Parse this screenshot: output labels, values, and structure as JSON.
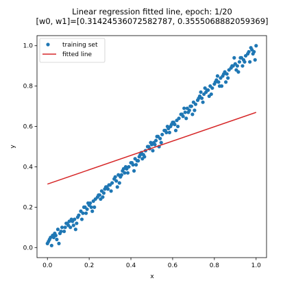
{
  "chart_data": {
    "type": "scatter",
    "title_line1": "Linear regression fitted line, epoch: 1/20",
    "title_line2": "[w0, w1]=[0.31424536072582787, 0.3555068882059369]",
    "xlabel": "x",
    "ylabel": "y",
    "xlim": [
      -0.05,
      1.05
    ],
    "ylim": [
      -0.05,
      1.05
    ],
    "xticks": [
      "0.0",
      "0.2",
      "0.4",
      "0.6",
      "0.8",
      "1.0"
    ],
    "yticks": [
      "0.0",
      "0.2",
      "0.4",
      "0.6",
      "0.8",
      "1.0"
    ],
    "grid": false,
    "legend_position": "upper-left",
    "series": [
      {
        "name": "training set",
        "kind": "scatter",
        "color": "#1f77b4",
        "x": [
          0.0,
          0.01,
          0.02,
          0.03,
          0.04,
          0.05,
          0.06,
          0.07,
          0.08,
          0.09,
          0.1,
          0.11,
          0.12,
          0.13,
          0.14,
          0.15,
          0.16,
          0.17,
          0.18,
          0.19,
          0.2,
          0.21,
          0.22,
          0.23,
          0.24,
          0.25,
          0.26,
          0.27,
          0.28,
          0.29,
          0.3,
          0.31,
          0.32,
          0.33,
          0.34,
          0.35,
          0.36,
          0.37,
          0.38,
          0.39,
          0.4,
          0.41,
          0.42,
          0.43,
          0.44,
          0.45,
          0.46,
          0.47,
          0.48,
          0.49,
          0.5,
          0.51,
          0.52,
          0.53,
          0.54,
          0.55,
          0.56,
          0.57,
          0.58,
          0.59,
          0.6,
          0.61,
          0.62,
          0.63,
          0.64,
          0.65,
          0.66,
          0.67,
          0.68,
          0.69,
          0.7,
          0.71,
          0.72,
          0.73,
          0.74,
          0.75,
          0.76,
          0.77,
          0.78,
          0.79,
          0.8,
          0.81,
          0.82,
          0.83,
          0.84,
          0.85,
          0.86,
          0.87,
          0.88,
          0.89,
          0.9,
          0.91,
          0.92,
          0.93,
          0.94,
          0.95,
          0.96,
          0.97,
          0.98,
          0.99,
          1.0,
          0.005,
          0.025,
          0.045,
          0.065,
          0.085,
          0.105,
          0.125,
          0.145,
          0.165,
          0.185,
          0.205,
          0.225,
          0.245,
          0.265,
          0.285,
          0.305,
          0.325,
          0.345,
          0.365,
          0.385,
          0.405,
          0.425,
          0.445,
          0.465,
          0.485,
          0.505,
          0.525,
          0.545,
          0.565,
          0.585,
          0.605,
          0.625,
          0.645,
          0.665,
          0.685,
          0.705,
          0.725,
          0.745,
          0.765,
          0.785,
          0.805,
          0.825,
          0.845,
          0.865,
          0.885,
          0.905,
          0.925,
          0.945,
          0.965,
          0.985,
          0.015,
          0.055,
          0.095,
          0.135,
          0.175,
          0.215,
          0.255,
          0.295,
          0.335,
          0.375,
          0.415,
          0.455,
          0.495,
          0.535,
          0.575,
          0.615,
          0.655,
          0.695,
          0.735,
          0.775,
          0.815,
          0.855,
          0.895,
          0.935,
          0.975,
          0.035,
          0.115,
          0.195,
          0.275,
          0.355,
          0.435,
          0.515,
          0.595,
          0.675,
          0.755,
          0.835,
          0.915,
          0.995
        ],
        "y": [
          0.02,
          0.04,
          0.01,
          0.05,
          0.06,
          0.09,
          0.07,
          0.1,
          0.08,
          0.12,
          0.11,
          0.1,
          0.13,
          0.14,
          0.12,
          0.16,
          0.18,
          0.17,
          0.2,
          0.19,
          0.21,
          0.2,
          0.23,
          0.24,
          0.25,
          0.26,
          0.28,
          0.27,
          0.3,
          0.29,
          0.31,
          0.32,
          0.34,
          0.33,
          0.36,
          0.35,
          0.38,
          0.37,
          0.39,
          0.4,
          0.42,
          0.41,
          0.44,
          0.43,
          0.45,
          0.47,
          0.46,
          0.48,
          0.5,
          0.49,
          0.51,
          0.52,
          0.53,
          0.55,
          0.54,
          0.56,
          0.58,
          0.57,
          0.59,
          0.6,
          0.62,
          0.61,
          0.63,
          0.64,
          0.66,
          0.65,
          0.67,
          0.69,
          0.68,
          0.7,
          0.72,
          0.71,
          0.73,
          0.75,
          0.74,
          0.76,
          0.77,
          0.78,
          0.8,
          0.79,
          0.81,
          0.83,
          0.82,
          0.84,
          0.85,
          0.87,
          0.86,
          0.88,
          0.89,
          0.9,
          0.91,
          0.9,
          0.92,
          0.94,
          0.93,
          0.95,
          0.96,
          0.92,
          0.98,
          0.97,
          1.0,
          0.03,
          0.06,
          0.04,
          0.08,
          0.1,
          0.13,
          0.11,
          0.15,
          0.14,
          0.17,
          0.22,
          0.2,
          0.26,
          0.25,
          0.3,
          0.28,
          0.35,
          0.32,
          0.39,
          0.37,
          0.42,
          0.41,
          0.46,
          0.45,
          0.5,
          0.48,
          0.55,
          0.52,
          0.58,
          0.57,
          0.62,
          0.6,
          0.66,
          0.64,
          0.7,
          0.68,
          0.74,
          0.72,
          0.78,
          0.76,
          0.82,
          0.8,
          0.86,
          0.84,
          0.9,
          0.88,
          0.94,
          0.92,
          0.97,
          0.96,
          0.05,
          0.02,
          0.12,
          0.09,
          0.2,
          0.18,
          0.24,
          0.31,
          0.3,
          0.4,
          0.38,
          0.44,
          0.52,
          0.5,
          0.6,
          0.58,
          0.69,
          0.66,
          0.77,
          0.75,
          0.85,
          0.82,
          0.94,
          0.9,
          0.99,
          0.07,
          0.14,
          0.22,
          0.29,
          0.36,
          0.43,
          0.51,
          0.61,
          0.67,
          0.79,
          0.8,
          0.87,
          0.93
        ],
        "marker_size": 2.6
      },
      {
        "name": "fitted line",
        "kind": "line",
        "color": "#d62728",
        "x": [
          0.0,
          1.0
        ],
        "y": [
          0.31424536072582787,
          0.6697522489317648
        ]
      }
    ]
  }
}
